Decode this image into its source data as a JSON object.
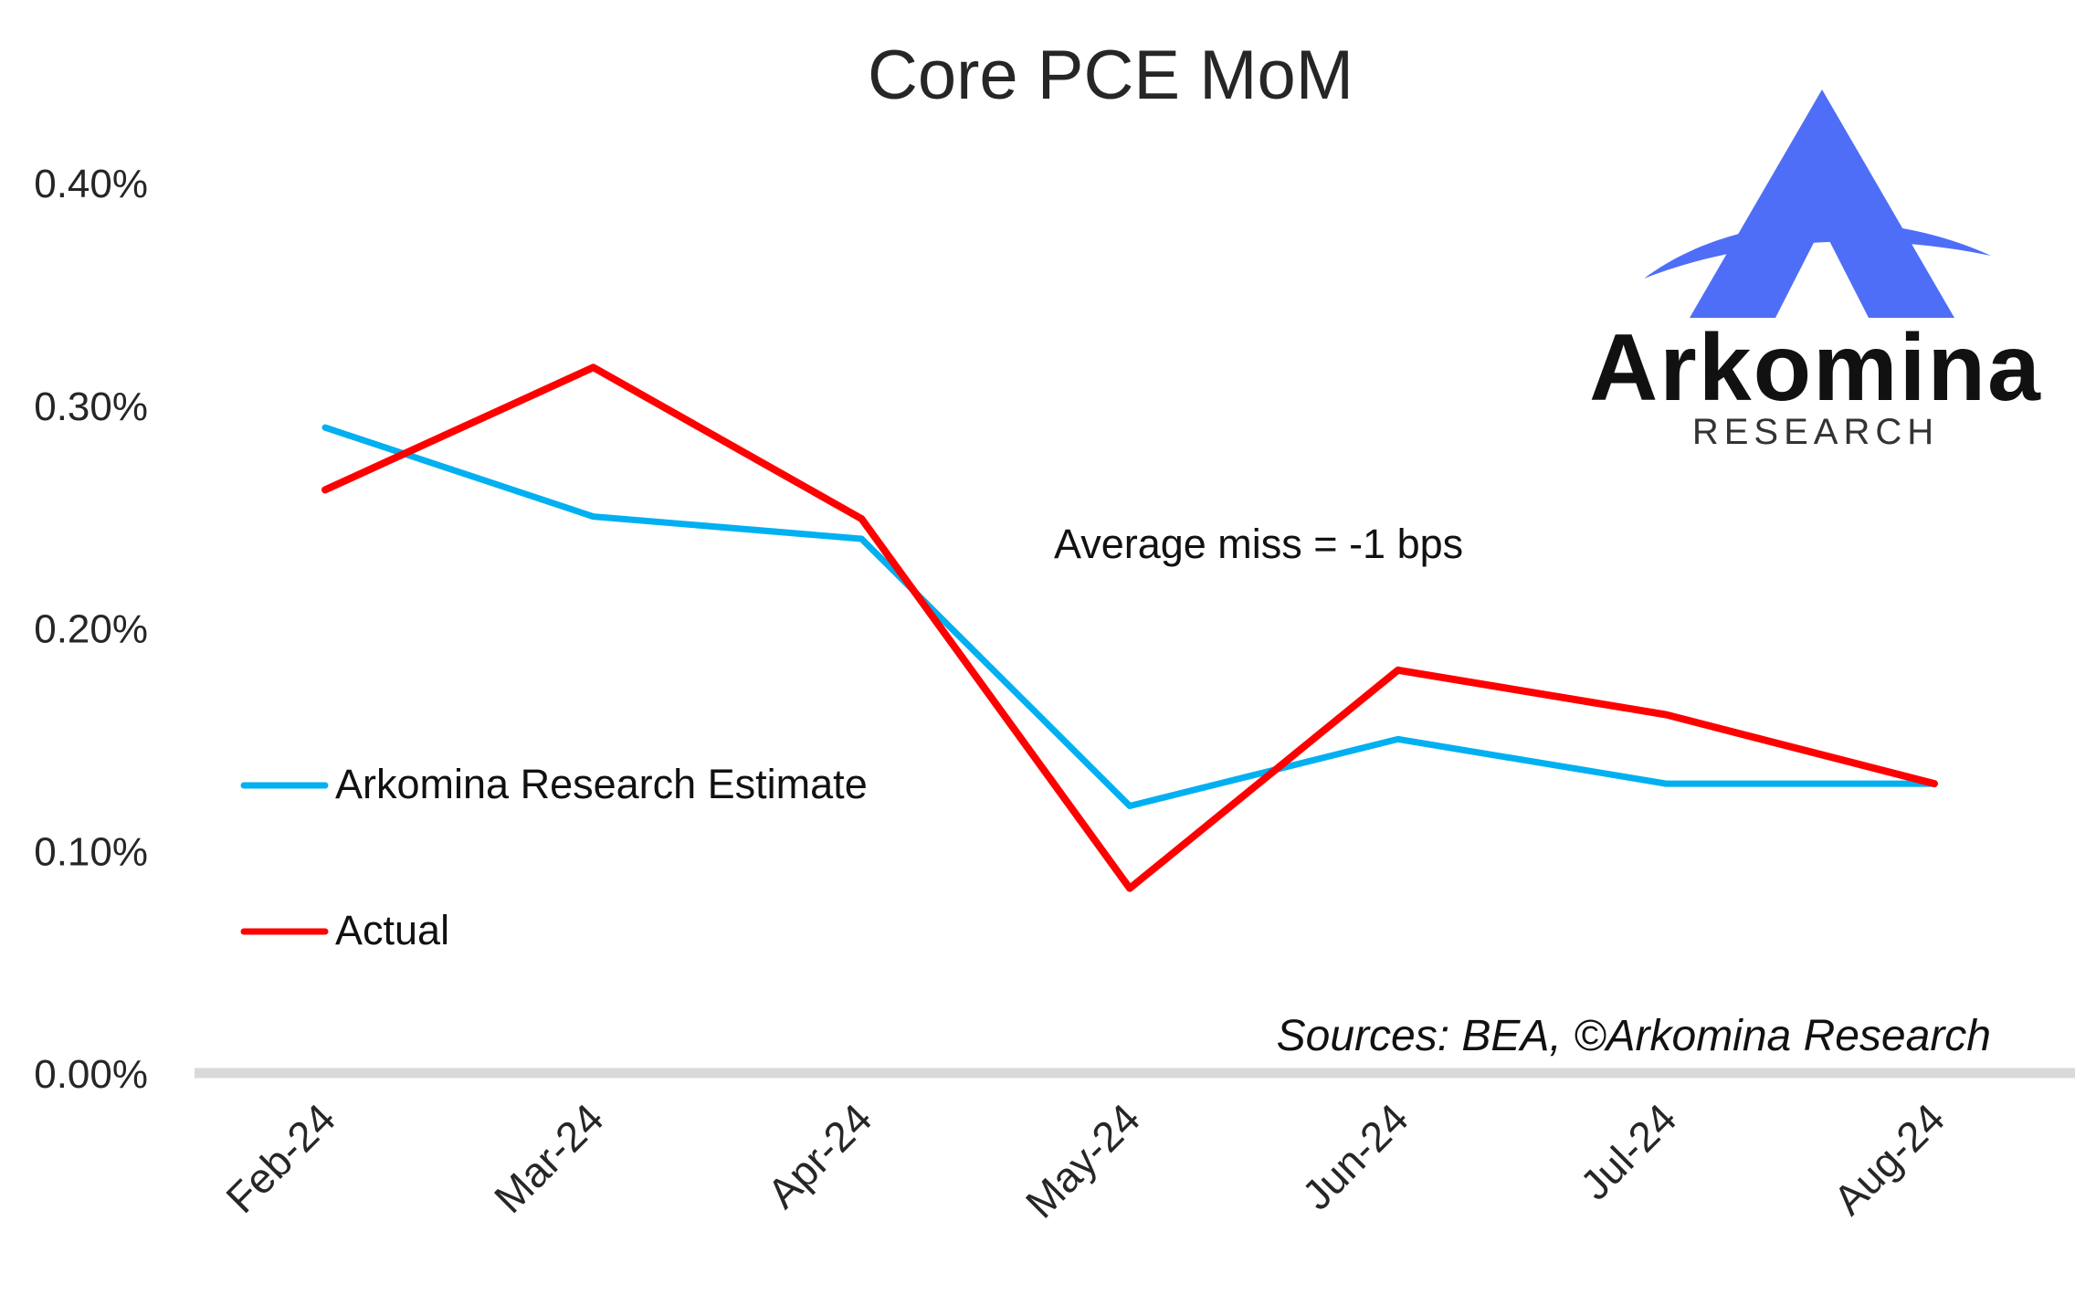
{
  "chart_data": {
    "type": "line",
    "title": "Core PCE MoM",
    "xlabel": "",
    "ylabel": "",
    "categories": [
      "Feb-24",
      "Mar-24",
      "Apr-24",
      "May-24",
      "Jun-24",
      "Jul-24",
      "Aug-24"
    ],
    "y_ticks": [
      "0.00%",
      "0.10%",
      "0.20%",
      "0.30%",
      "0.40%"
    ],
    "ylim": [
      0,
      0.4
    ],
    "grid": false,
    "legend_position": "left",
    "series": [
      {
        "name": "Arkomina Research Estimate",
        "color": "#00B0F0",
        "values": [
          0.29,
          0.25,
          0.24,
          0.12,
          0.15,
          0.13,
          0.13
        ]
      },
      {
        "name": "Actual",
        "color": "#FF0000",
        "values": [
          0.262,
          0.317,
          0.249,
          0.083,
          0.181,
          0.161,
          0.13
        ]
      }
    ],
    "annotation": "Average miss = -1 bps",
    "source": "Sources: BEA, ©Arkomina Research"
  },
  "logo": {
    "name": "Arkomina",
    "subtitle": "RESEARCH",
    "colors": {
      "mark": "#4F6EF7",
      "wordmark": "#111111",
      "subtitle": "#333333"
    }
  },
  "colors": {
    "axis": "#D9D9D9",
    "text": "#262626"
  }
}
